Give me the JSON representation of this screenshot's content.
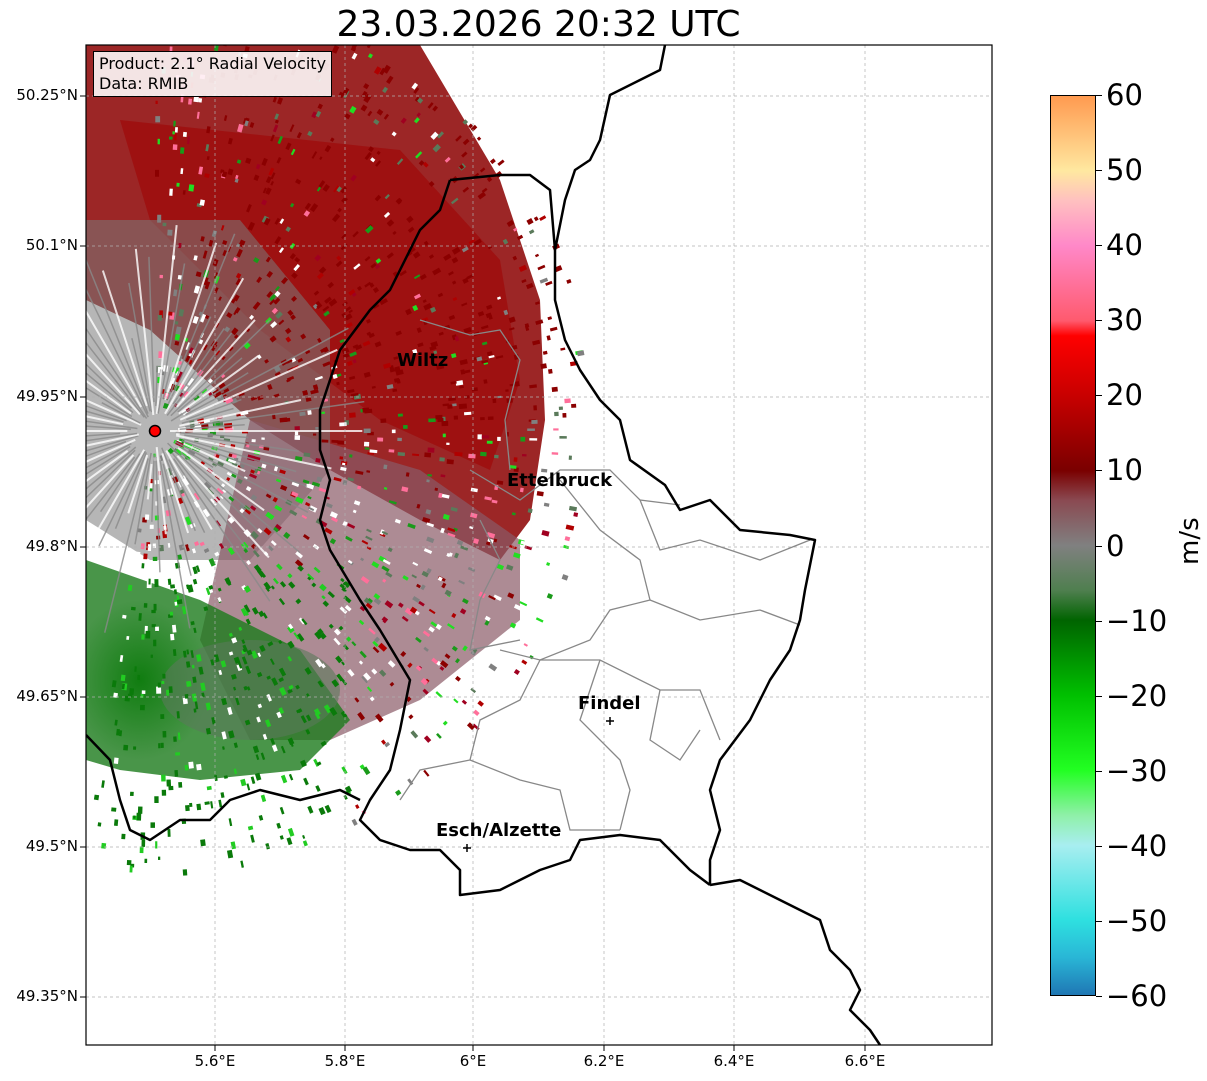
{
  "title": "23.03.2026 20:32 UTC",
  "info": {
    "product": "Product: 2.1° Radial Velocity",
    "data_source": "Data: RMIB"
  },
  "axes": {
    "y_labels": [
      "50.25°N",
      "50.1°N",
      "49.95°N",
      "49.8°N",
      "49.65°N",
      "49.5°N",
      "49.35°N"
    ],
    "x_labels": [
      "5.6°E",
      "5.8°E",
      "6°E",
      "6.2°E",
      "6.4°E",
      "6.6°E"
    ],
    "lon_range": [
      5.4,
      6.8
    ],
    "lat_range": [
      49.3,
      50.3
    ]
  },
  "cities": [
    {
      "name": "Wiltz",
      "lon": 5.93,
      "lat": 49.97,
      "marker": false
    },
    {
      "name": "Ettelbruck",
      "lon": 6.1,
      "lat": 49.85,
      "marker": false
    },
    {
      "name": "Findel",
      "lon": 6.2,
      "lat": 49.63,
      "marker": true
    },
    {
      "name": "Esch/Alzette",
      "lon": 5.98,
      "lat": 49.5,
      "marker": true
    }
  ],
  "radar_site": {
    "lon": 5.505,
    "lat": 49.914,
    "color": "#ff0000"
  },
  "colorbar": {
    "unit": "m/s",
    "min": -60,
    "max": 60,
    "ticks": [
      "60",
      "50",
      "40",
      "30",
      "20",
      "10",
      "0",
      "−10",
      "−20",
      "−30",
      "−40",
      "−50",
      "−60"
    ],
    "stops": [
      {
        "v": -60,
        "c": "#1f77b4"
      },
      {
        "v": -55,
        "c": "#29b6d6"
      },
      {
        "v": -50,
        "c": "#2ee0e0"
      },
      {
        "v": -40,
        "c": "#a8eef0"
      },
      {
        "v": -36,
        "c": "#8ff0a8"
      },
      {
        "v": -30,
        "c": "#22ff22"
      },
      {
        "v": -20,
        "c": "#00c000"
      },
      {
        "v": -10,
        "c": "#006400"
      },
      {
        "v": -6,
        "c": "#4f7f4f"
      },
      {
        "v": 0,
        "c": "#808080"
      },
      {
        "v": 6,
        "c": "#8a4a52"
      },
      {
        "v": 10,
        "c": "#7a0000"
      },
      {
        "v": 20,
        "c": "#c80000"
      },
      {
        "v": 28,
        "c": "#ff0000"
      },
      {
        "v": 30,
        "c": "#ff5a6e"
      },
      {
        "v": 40,
        "c": "#ff88c8"
      },
      {
        "v": 46,
        "c": "#ffc0c0"
      },
      {
        "v": 50,
        "c": "#ffe8a0"
      },
      {
        "v": 60,
        "c": "#ff9a50"
      }
    ]
  }
}
